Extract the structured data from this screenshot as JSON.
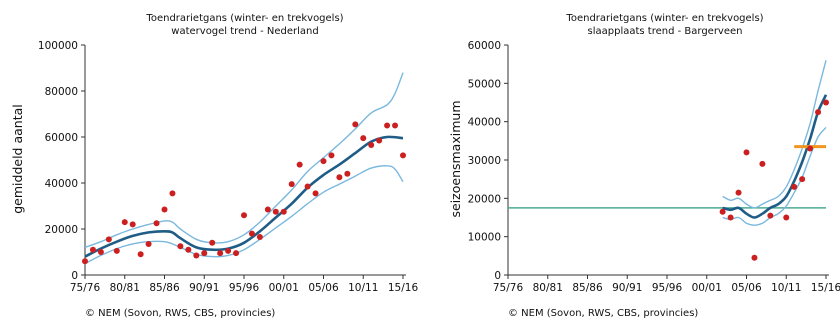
{
  "chart_data": [
    {
      "type": "line",
      "title": "Toendrarietgans (winter- en trekvogels)",
      "subtitle": "watervogel trend - Nederland",
      "ylabel": "gemiddeld aantal",
      "xlabel": "",
      "ylim": [
        0,
        100000
      ],
      "yticks": [
        0,
        20000,
        40000,
        60000,
        80000,
        100000
      ],
      "xlim": [
        1975,
        2015
      ],
      "xticks": [
        1975,
        1980,
        1985,
        1990,
        1995,
        2000,
        2005,
        2010,
        2015
      ],
      "xtick_labels": [
        "75/76",
        "80/81",
        "85/86",
        "90/91",
        "95/96",
        "00/01",
        "05/06",
        "10/11",
        "15/16"
      ],
      "grid": false,
      "colors": {
        "trend": "#1f5d87",
        "band": "#7ab8de",
        "points": "#cc1f1f"
      },
      "series": [
        {
          "role": "observed",
          "x": [
            1975,
            1976,
            1977,
            1978,
            1979,
            1980,
            1981,
            1982,
            1983,
            1984,
            1985,
            1986,
            1987,
            1988,
            1989,
            1990,
            1991,
            1992,
            1993,
            1994,
            1995,
            1996,
            1997,
            1998,
            1999,
            2000,
            2001,
            2002,
            2003,
            2004,
            2005,
            2006,
            2007,
            2008,
            2009,
            2010,
            2011,
            2012,
            2013,
            2014,
            2015
          ],
          "y": [
            6000,
            11000,
            10000,
            15500,
            10500,
            23000,
            22000,
            9000,
            13500,
            22500,
            28500,
            35500,
            12500,
            11000,
            8500,
            9500,
            14000,
            9500,
            10500,
            9500,
            26000,
            18000,
            16500,
            28500,
            27500,
            27500,
            39500,
            48000,
            38500,
            35500,
            49500,
            52000,
            42500,
            44000,
            65500,
            59500,
            56500,
            58500,
            65000,
            65000,
            52000
          ]
        },
        {
          "role": "trend",
          "x": [
            1975,
            1977,
            1979,
            1981,
            1983,
            1985,
            1986,
            1987,
            1989,
            1991,
            1993,
            1995,
            1997,
            1999,
            2001,
            2003,
            2005,
            2007,
            2009,
            2011,
            2013,
            2015
          ],
          "y": [
            8000,
            11500,
            14500,
            17000,
            18500,
            19000,
            18500,
            16000,
            12000,
            11000,
            11500,
            14000,
            19000,
            25000,
            31000,
            38000,
            43500,
            48000,
            53000,
            58000,
            60000,
            59500
          ]
        },
        {
          "role": "upper",
          "x": [
            1975,
            1977,
            1979,
            1981,
            1983,
            1985,
            1986,
            1987,
            1989,
            1991,
            1993,
            1995,
            1997,
            1999,
            2001,
            2003,
            2005,
            2007,
            2009,
            2011,
            2013,
            2014,
            2015
          ],
          "y": [
            12000,
            14500,
            17500,
            20000,
            22000,
            23500,
            23000,
            20000,
            15500,
            14000,
            14500,
            17500,
            23000,
            30000,
            37000,
            45000,
            51000,
            57000,
            63500,
            70500,
            74000,
            79000,
            88000
          ]
        },
        {
          "role": "lower",
          "x": [
            1975,
            1977,
            1979,
            1981,
            1983,
            1985,
            1986,
            1987,
            1989,
            1991,
            1993,
            1995,
            1997,
            1999,
            2001,
            2003,
            2005,
            2007,
            2009,
            2011,
            2013,
            2014,
            2015
          ],
          "y": [
            5000,
            8500,
            11500,
            13500,
            14500,
            14500,
            13500,
            12000,
            9000,
            8000,
            8500,
            11000,
            15500,
            20500,
            25500,
            31000,
            36000,
            39500,
            43000,
            46500,
            47500,
            46000,
            40500
          ]
        }
      ],
      "credit": "© NEM (Sovon, RWS, CBS, provincies)"
    },
    {
      "type": "line",
      "title": "Toendrarietgans (winter- en trekvogels)",
      "subtitle": "slaapplaats trend - Bargerveen",
      "ylabel": "seizoensmaximum",
      "xlabel": "",
      "ylim": [
        0,
        60000
      ],
      "yticks": [
        0,
        10000,
        20000,
        30000,
        40000,
        50000,
        60000
      ],
      "xlim": [
        1975,
        2015
      ],
      "xticks": [
        1975,
        1980,
        1985,
        1990,
        1995,
        2000,
        2005,
        2010,
        2015
      ],
      "xtick_labels": [
        "75/76",
        "80/81",
        "85/86",
        "90/91",
        "95/96",
        "00/01",
        "05/06",
        "10/11",
        "15/16"
      ],
      "grid": false,
      "colors": {
        "trend": "#1f5d87",
        "band": "#7ab8de",
        "points": "#cc1f1f",
        "reference": "#4aab95",
        "recent_level": "#f0961e"
      },
      "reference_line": 17500,
      "recent_level": {
        "x": [
          2011,
          2015
        ],
        "y": 33500
      },
      "series": [
        {
          "role": "observed",
          "x": [
            2002,
            2003,
            2004,
            2005,
            2006,
            2007,
            2008,
            2010,
            2011,
            2012,
            2013,
            2014,
            2015
          ],
          "y": [
            16500,
            15000,
            21500,
            32000,
            4500,
            29000,
            15500,
            15000,
            23000,
            25000,
            33000,
            42500,
            45000
          ]
        },
        {
          "role": "trend",
          "x": [
            2002,
            2003,
            2004,
            2005,
            2006,
            2007,
            2008,
            2009,
            2010,
            2011,
            2012,
            2013,
            2014,
            2015
          ],
          "y": [
            17500,
            17000,
            17500,
            16000,
            15000,
            16000,
            17500,
            18500,
            20500,
            24500,
            29500,
            35500,
            42500,
            47000
          ]
        },
        {
          "role": "upper",
          "x": [
            2002,
            2003,
            2004,
            2005,
            2006,
            2007,
            2008,
            2009,
            2010,
            2011,
            2012,
            2013,
            2014,
            2015
          ],
          "y": [
            20500,
            19500,
            20000,
            18500,
            17500,
            18500,
            19500,
            20500,
            23000,
            27500,
            33000,
            39500,
            48000,
            56000
          ]
        },
        {
          "role": "lower",
          "x": [
            2002,
            2003,
            2004,
            2005,
            2006,
            2007,
            2008,
            2009,
            2010,
            2011,
            2012,
            2013,
            2014,
            2015
          ],
          "y": [
            15000,
            14500,
            15000,
            13500,
            13000,
            13500,
            15000,
            16000,
            18000,
            21500,
            25500,
            31000,
            36000,
            38500
          ]
        }
      ],
      "credit": "© NEM (Sovon, RWS, CBS, provincies)"
    }
  ]
}
